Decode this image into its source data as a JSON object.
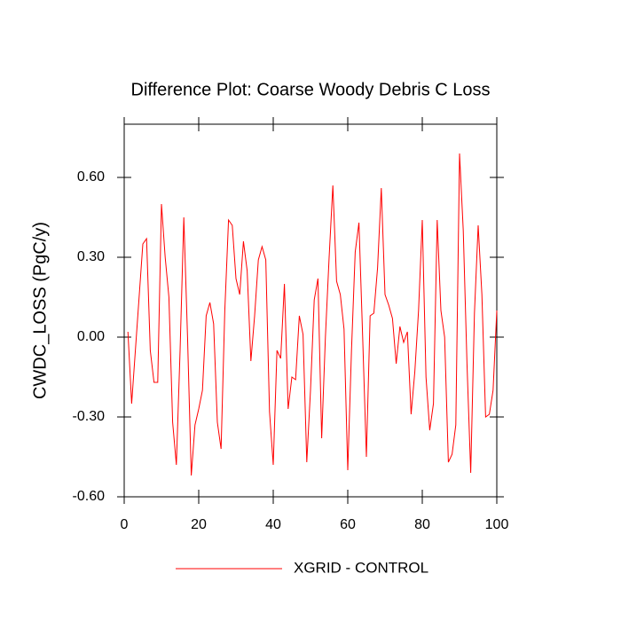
{
  "chart_data": {
    "type": "line",
    "title": "Difference Plot: Coarse Woody Debris C Loss",
    "y_label": "CWDC_LOSS  (PgC/y)",
    "x": [
      1,
      2,
      3,
      4,
      5,
      6,
      7,
      8,
      9,
      10,
      11,
      12,
      13,
      14,
      15,
      16,
      17,
      18,
      19,
      20,
      21,
      22,
      23,
      24,
      25,
      26,
      27,
      28,
      29,
      30,
      31,
      32,
      33,
      34,
      35,
      36,
      37,
      38,
      39,
      40,
      41,
      42,
      43,
      44,
      45,
      46,
      47,
      48,
      49,
      50,
      51,
      52,
      53,
      54,
      55,
      56,
      57,
      58,
      59,
      60,
      61,
      62,
      63,
      64,
      65,
      66,
      67,
      68,
      69,
      70,
      71,
      72,
      73,
      74,
      75,
      76,
      77,
      78,
      79,
      80,
      81,
      82,
      83,
      84,
      85,
      86,
      87,
      88,
      89,
      90,
      91,
      92,
      93,
      94,
      95,
      96,
      97,
      98,
      99,
      100
    ],
    "series": [
      {
        "name": "XGRID - CONTROL",
        "color": "#ff0000",
        "values": [
          0.02,
          -0.25,
          -0.05,
          0.15,
          0.35,
          0.37,
          -0.05,
          -0.17,
          -0.17,
          0.5,
          0.3,
          0.15,
          -0.32,
          -0.48,
          -0.05,
          0.45,
          0.0,
          -0.52,
          -0.33,
          -0.27,
          -0.2,
          0.08,
          0.13,
          0.05,
          -0.32,
          -0.42,
          0.1,
          0.44,
          0.42,
          0.22,
          0.16,
          0.36,
          0.25,
          -0.09,
          0.08,
          0.29,
          0.34,
          0.29,
          -0.28,
          -0.48,
          -0.05,
          -0.08,
          0.2,
          -0.27,
          -0.15,
          -0.16,
          0.08,
          0.01,
          -0.47,
          -0.2,
          0.14,
          0.22,
          -0.38,
          0.0,
          0.3,
          0.57,
          0.21,
          0.16,
          0.03,
          -0.5,
          -0.05,
          0.32,
          0.43,
          0.0,
          -0.45,
          0.08,
          0.09,
          0.26,
          0.56,
          0.16,
          0.12,
          0.07,
          -0.1,
          0.04,
          -0.02,
          0.02,
          -0.29,
          -0.13,
          0.1,
          0.44,
          -0.15,
          -0.35,
          -0.25,
          0.44,
          0.1,
          0.0,
          -0.47,
          -0.44,
          -0.33,
          0.69,
          0.4,
          -0.1,
          -0.51,
          0.09,
          0.42,
          0.16,
          -0.3,
          -0.29,
          -0.2,
          0.1
        ]
      }
    ],
    "xlim": [
      0,
      100
    ],
    "xticks": [
      0,
      20,
      40,
      60,
      80,
      100
    ],
    "ylim": [
      -0.6,
      0.8
    ],
    "yticks": [
      {
        "value": -0.6,
        "label": "-0.60"
      },
      {
        "value": -0.3,
        "label": "-0.30"
      },
      {
        "value": 0,
        "label": "0.00"
      },
      {
        "value": 0.3,
        "label": "0.30"
      },
      {
        "value": 0.6,
        "label": "0.60"
      }
    ]
  }
}
